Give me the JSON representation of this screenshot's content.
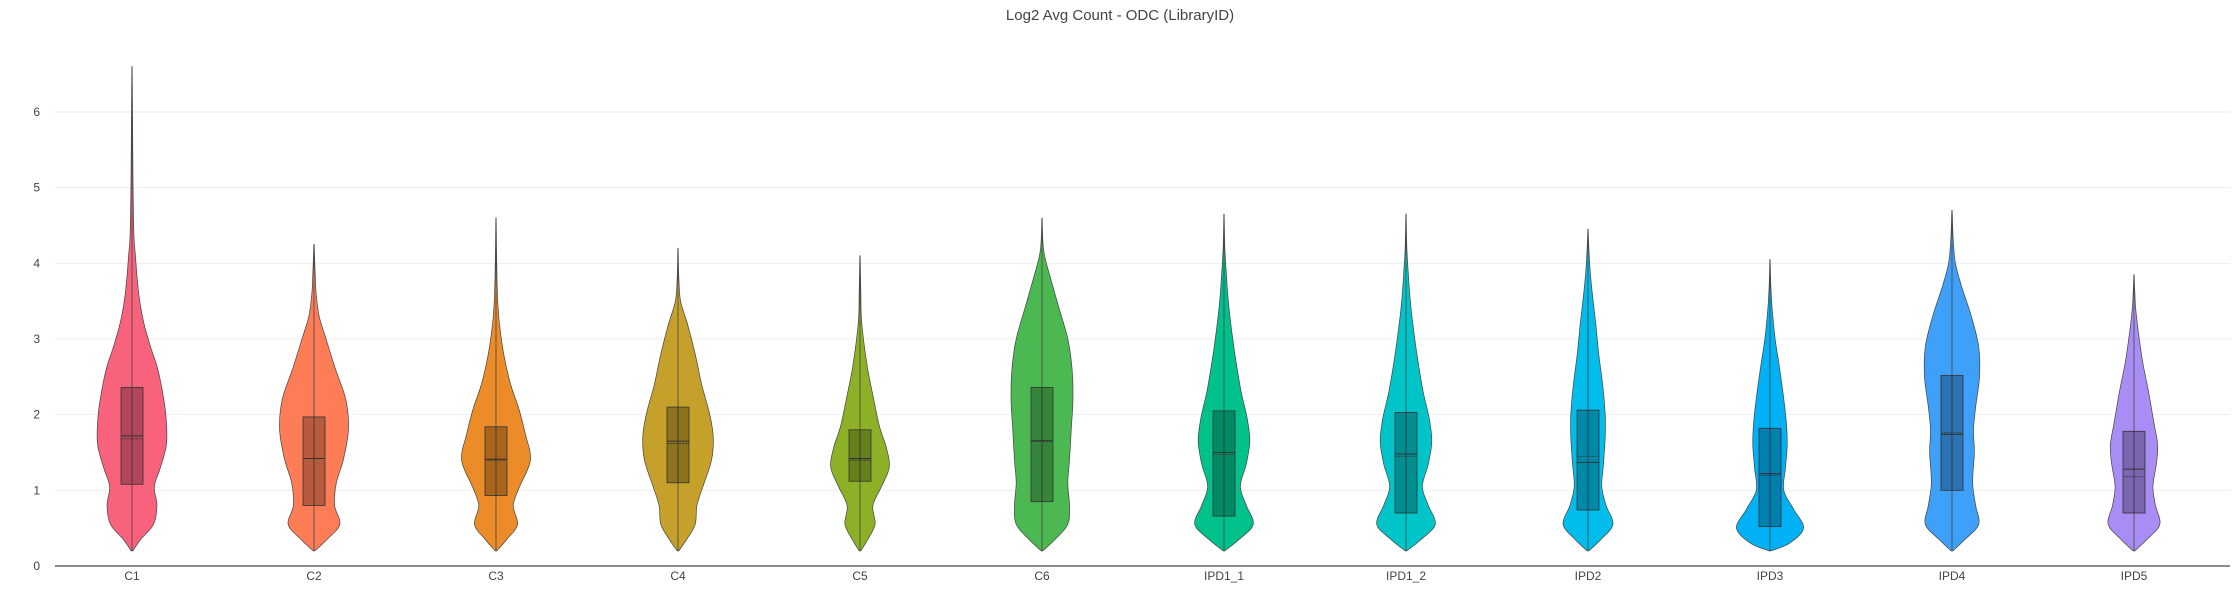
{
  "chart_data": {
    "type": "violin",
    "title": "Log2 Avg Count - ODC (LibraryID)",
    "xlabel": "",
    "ylabel": "",
    "ylim": [
      0,
      6.6
    ],
    "yticks": [
      0,
      1,
      2,
      3,
      4,
      5,
      6
    ],
    "grid": true,
    "legend": "none",
    "categories": [
      "C1",
      "C2",
      "C3",
      "C4",
      "C5",
      "C6",
      "IPD1_1",
      "IPD1_2",
      "IPD2",
      "IPD3",
      "IPD4",
      "IPD5"
    ],
    "colors": [
      "#f9627d",
      "#fe7d57",
      "#ec8c29",
      "#c5a02b",
      "#8cb127",
      "#4cb851",
      "#00c18c",
      "#00c5c8",
      "#00bdeb",
      "#00b1f5",
      "#3ea0f8",
      "#a98df5"
    ],
    "series": [
      {
        "name": "C1",
        "min": 0.2,
        "max": 6.6,
        "q1": 1.08,
        "median": 1.72,
        "q3": 2.36,
        "mean": 1.68,
        "density": [
          [
            0.2,
            0.02
          ],
          [
            0.35,
            0.2
          ],
          [
            0.55,
            0.5
          ],
          [
            0.8,
            0.58
          ],
          [
            1.05,
            0.52
          ],
          [
            1.3,
            0.66
          ],
          [
            1.6,
            0.8
          ],
          [
            1.9,
            0.8
          ],
          [
            2.2,
            0.74
          ],
          [
            2.6,
            0.6
          ],
          [
            2.9,
            0.43
          ],
          [
            3.2,
            0.28
          ],
          [
            3.5,
            0.18
          ],
          [
            3.8,
            0.12
          ],
          [
            4.1,
            0.08
          ],
          [
            4.3,
            0.05
          ],
          [
            4.6,
            0.035
          ],
          [
            5.0,
            0.025
          ],
          [
            5.5,
            0.018
          ],
          [
            6.0,
            0.012
          ],
          [
            6.6,
            0.004
          ]
        ]
      },
      {
        "name": "C2",
        "min": 0.2,
        "max": 4.25,
        "q1": 0.8,
        "median": 1.42,
        "q3": 1.97,
        "mean": 1.42,
        "density": [
          [
            0.2,
            0.02
          ],
          [
            0.35,
            0.3
          ],
          [
            0.55,
            0.6
          ],
          [
            0.8,
            0.48
          ],
          [
            1.1,
            0.52
          ],
          [
            1.4,
            0.68
          ],
          [
            1.8,
            0.8
          ],
          [
            2.2,
            0.74
          ],
          [
            2.6,
            0.5
          ],
          [
            3.0,
            0.28
          ],
          [
            3.3,
            0.12
          ],
          [
            3.6,
            0.05
          ],
          [
            3.9,
            0.025
          ],
          [
            4.25,
            0.005
          ]
        ]
      },
      {
        "name": "C3",
        "min": 0.2,
        "max": 4.6,
        "q1": 0.93,
        "median": 1.41,
        "q3": 1.84,
        "mean": 1.4,
        "density": [
          [
            0.2,
            0.02
          ],
          [
            0.35,
            0.25
          ],
          [
            0.55,
            0.5
          ],
          [
            0.8,
            0.4
          ],
          [
            1.05,
            0.55
          ],
          [
            1.4,
            0.8
          ],
          [
            1.75,
            0.68
          ],
          [
            2.1,
            0.52
          ],
          [
            2.4,
            0.34
          ],
          [
            2.8,
            0.18
          ],
          [
            3.2,
            0.08
          ],
          [
            3.5,
            0.04
          ],
          [
            3.9,
            0.02
          ],
          [
            4.6,
            0.004
          ]
        ]
      },
      {
        "name": "C4",
        "min": 0.2,
        "max": 4.2,
        "q1": 1.1,
        "median": 1.65,
        "q3": 2.1,
        "mean": 1.62,
        "density": [
          [
            0.2,
            0.02
          ],
          [
            0.35,
            0.2
          ],
          [
            0.55,
            0.4
          ],
          [
            0.8,
            0.44
          ],
          [
            1.05,
            0.58
          ],
          [
            1.4,
            0.78
          ],
          [
            1.7,
            0.82
          ],
          [
            2.0,
            0.74
          ],
          [
            2.4,
            0.55
          ],
          [
            2.8,
            0.4
          ],
          [
            3.2,
            0.22
          ],
          [
            3.5,
            0.06
          ],
          [
            3.8,
            0.02
          ],
          [
            4.2,
            0.004
          ]
        ]
      },
      {
        "name": "C5",
        "min": 0.2,
        "max": 4.1,
        "q1": 1.12,
        "median": 1.42,
        "q3": 1.8,
        "mean": 1.4,
        "density": [
          [
            0.2,
            0.02
          ],
          [
            0.35,
            0.18
          ],
          [
            0.55,
            0.35
          ],
          [
            0.8,
            0.3
          ],
          [
            1.05,
            0.5
          ],
          [
            1.3,
            0.68
          ],
          [
            1.55,
            0.62
          ],
          [
            1.85,
            0.45
          ],
          [
            2.2,
            0.32
          ],
          [
            2.6,
            0.18
          ],
          [
            3.0,
            0.08
          ],
          [
            3.3,
            0.03
          ],
          [
            3.6,
            0.02
          ],
          [
            4.1,
            0.004
          ]
        ]
      },
      {
        "name": "C6",
        "min": 0.2,
        "max": 4.6,
        "q1": 0.85,
        "median": 1.65,
        "q3": 2.36,
        "mean": 1.66,
        "density": [
          [
            0.2,
            0.02
          ],
          [
            0.35,
            0.3
          ],
          [
            0.55,
            0.6
          ],
          [
            0.8,
            0.64
          ],
          [
            1.1,
            0.6
          ],
          [
            1.4,
            0.64
          ],
          [
            1.8,
            0.68
          ],
          [
            2.2,
            0.72
          ],
          [
            2.6,
            0.7
          ],
          [
            3.0,
            0.6
          ],
          [
            3.4,
            0.4
          ],
          [
            3.8,
            0.2
          ],
          [
            4.1,
            0.06
          ],
          [
            4.3,
            0.02
          ],
          [
            4.6,
            0.004
          ]
        ]
      },
      {
        "name": "IPD1_1",
        "min": 0.2,
        "max": 4.65,
        "q1": 0.66,
        "median": 1.5,
        "q3": 2.05,
        "mean": 1.47,
        "density": [
          [
            0.2,
            0.02
          ],
          [
            0.35,
            0.35
          ],
          [
            0.55,
            0.68
          ],
          [
            0.8,
            0.52
          ],
          [
            1.05,
            0.38
          ],
          [
            1.35,
            0.52
          ],
          [
            1.65,
            0.6
          ],
          [
            1.95,
            0.54
          ],
          [
            2.3,
            0.4
          ],
          [
            2.7,
            0.28
          ],
          [
            3.1,
            0.18
          ],
          [
            3.5,
            0.1
          ],
          [
            3.9,
            0.05
          ],
          [
            4.2,
            0.02
          ],
          [
            4.65,
            0.004
          ]
        ]
      },
      {
        "name": "IPD1_2",
        "min": 0.2,
        "max": 4.65,
        "q1": 0.7,
        "median": 1.48,
        "q3": 2.03,
        "mean": 1.45,
        "density": [
          [
            0.2,
            0.02
          ],
          [
            0.35,
            0.35
          ],
          [
            0.55,
            0.68
          ],
          [
            0.8,
            0.52
          ],
          [
            1.05,
            0.38
          ],
          [
            1.35,
            0.52
          ],
          [
            1.65,
            0.6
          ],
          [
            1.95,
            0.54
          ],
          [
            2.3,
            0.4
          ],
          [
            2.7,
            0.28
          ],
          [
            3.1,
            0.18
          ],
          [
            3.5,
            0.1
          ],
          [
            3.9,
            0.05
          ],
          [
            4.2,
            0.02
          ],
          [
            4.65,
            0.004
          ]
        ]
      },
      {
        "name": "IPD2",
        "min": 0.2,
        "max": 4.45,
        "q1": 0.74,
        "median": 1.37,
        "q3": 2.06,
        "mean": 1.45,
        "density": [
          [
            0.2,
            0.02
          ],
          [
            0.35,
            0.3
          ],
          [
            0.55,
            0.58
          ],
          [
            0.8,
            0.42
          ],
          [
            1.05,
            0.32
          ],
          [
            1.35,
            0.36
          ],
          [
            1.7,
            0.4
          ],
          [
            2.0,
            0.4
          ],
          [
            2.4,
            0.34
          ],
          [
            2.8,
            0.25
          ],
          [
            3.2,
            0.18
          ],
          [
            3.6,
            0.1
          ],
          [
            3.9,
            0.05
          ],
          [
            4.2,
            0.02
          ],
          [
            4.45,
            0.004
          ]
        ]
      },
      {
        "name": "IPD3",
        "min": 0.2,
        "max": 4.05,
        "q1": 0.52,
        "median": 1.22,
        "q3": 1.82,
        "mean": 1.2,
        "density": [
          [
            0.2,
            0.02
          ],
          [
            0.3,
            0.45
          ],
          [
            0.5,
            0.78
          ],
          [
            0.75,
            0.55
          ],
          [
            1.0,
            0.32
          ],
          [
            1.3,
            0.36
          ],
          [
            1.6,
            0.4
          ],
          [
            1.9,
            0.38
          ],
          [
            2.3,
            0.3
          ],
          [
            2.7,
            0.2
          ],
          [
            3.0,
            0.12
          ],
          [
            3.4,
            0.05
          ],
          [
            3.7,
            0.02
          ],
          [
            4.05,
            0.004
          ]
        ]
      },
      {
        "name": "IPD4",
        "min": 0.2,
        "max": 4.7,
        "q1": 1.0,
        "median": 1.74,
        "q3": 2.52,
        "mean": 1.76,
        "density": [
          [
            0.2,
            0.02
          ],
          [
            0.35,
            0.3
          ],
          [
            0.55,
            0.62
          ],
          [
            0.8,
            0.55
          ],
          [
            1.1,
            0.48
          ],
          [
            1.5,
            0.52
          ],
          [
            1.8,
            0.5
          ],
          [
            2.1,
            0.55
          ],
          [
            2.5,
            0.64
          ],
          [
            2.9,
            0.62
          ],
          [
            3.3,
            0.45
          ],
          [
            3.7,
            0.22
          ],
          [
            4.0,
            0.08
          ],
          [
            4.3,
            0.03
          ],
          [
            4.7,
            0.004
          ]
        ]
      },
      {
        "name": "IPD5",
        "min": 0.2,
        "max": 3.85,
        "q1": 0.7,
        "median": 1.28,
        "q3": 1.78,
        "mean": 1.18,
        "density": [
          [
            0.2,
            0.02
          ],
          [
            0.35,
            0.3
          ],
          [
            0.55,
            0.6
          ],
          [
            0.8,
            0.5
          ],
          [
            1.05,
            0.44
          ],
          [
            1.35,
            0.52
          ],
          [
            1.6,
            0.55
          ],
          [
            1.9,
            0.46
          ],
          [
            2.3,
            0.34
          ],
          [
            2.7,
            0.2
          ],
          [
            3.1,
            0.1
          ],
          [
            3.4,
            0.04
          ],
          [
            3.6,
            0.02
          ],
          [
            3.85,
            0.004
          ]
        ]
      }
    ]
  }
}
